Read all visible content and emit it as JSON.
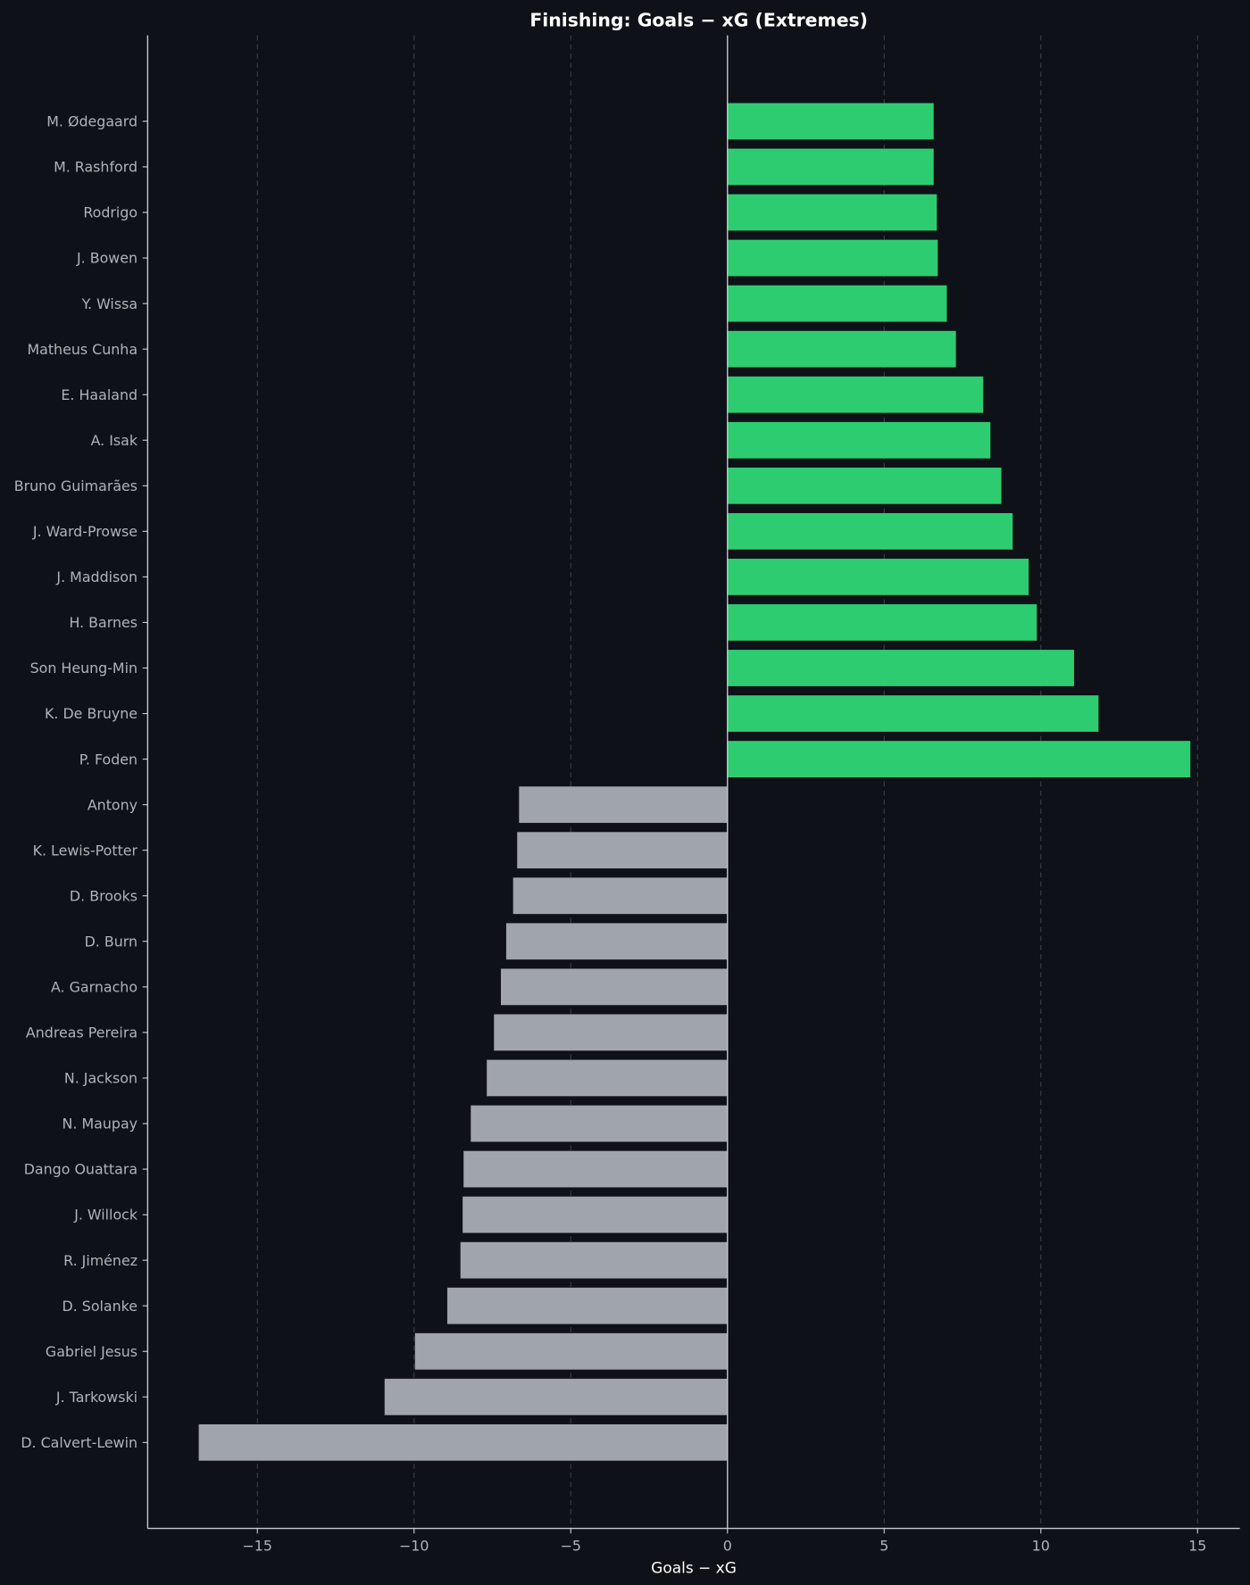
{
  "chart_data": {
    "type": "bar",
    "orientation": "horizontal",
    "title": "Finishing: Goals − xG (Extremes)",
    "xlabel": "Goals − xG",
    "ylabel": "",
    "xlim": [
      -18.5,
      16.35
    ],
    "xticks": [
      -15,
      -10,
      -5,
      0,
      5,
      10,
      15
    ],
    "xtick_labels": [
      "−15",
      "−10",
      "−5",
      "0",
      "5",
      "10",
      "15"
    ],
    "grid": "vertical dashed",
    "colors": {
      "background": "#0e1117",
      "positive": "#2ecc71",
      "negative": "#a0a4ab",
      "text": "#ffffff",
      "tick_text": "#b0b3b8",
      "grid": "#3a3f47",
      "axis": "#c8cbd0"
    },
    "categories": [
      "M. Ødegaard",
      "M. Rashford",
      "Rodrigo",
      "J. Bowen",
      "Y. Wissa",
      "Matheus Cunha",
      "E. Haaland",
      "A. Isak",
      "Bruno Guimarães",
      "J. Ward-Prowse",
      "J. Maddison",
      "H. Barnes",
      "Son Heung-Min",
      "K. De Bruyne",
      "P. Foden",
      "Antony",
      "K. Lewis-Potter",
      "D. Brooks",
      "D. Burn",
      "A. Garnacho",
      "Andreas Pereira",
      "N. Jackson",
      "N. Maupay",
      "Dango Ouattara",
      "J. Willock",
      "R. Jiménez",
      "D. Solanke",
      "Gabriel Jesus",
      "J. Tarkowski",
      "D. Calvert-Lewin"
    ],
    "values": [
      6.58,
      6.58,
      6.68,
      6.71,
      7.0,
      7.29,
      8.16,
      8.39,
      8.74,
      9.1,
      9.61,
      9.87,
      11.06,
      11.84,
      14.77,
      -6.65,
      -6.71,
      -6.84,
      -7.06,
      -7.23,
      -7.45,
      -7.68,
      -8.19,
      -8.42,
      -8.45,
      -8.52,
      -8.94,
      -9.97,
      -10.94,
      -16.87
    ]
  }
}
